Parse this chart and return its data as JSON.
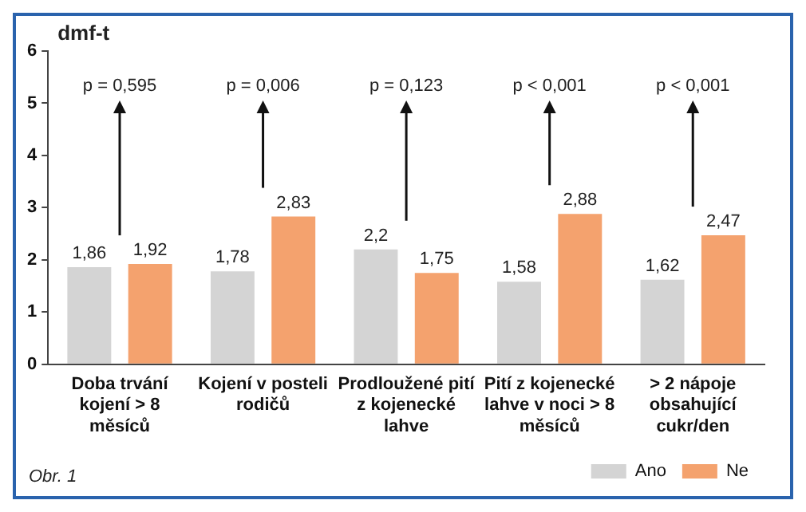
{
  "chart_data": {
    "type": "bar",
    "ylabel": "dmf-t",
    "categories": [
      "Doba trvání kojení > 8 měsíců",
      "Kojení v posteli rodičů",
      "Prodloužené pití z kojenecké lahve",
      "Pití z kojenecké lahve v noci > 8 měsíců",
      "> 2 nápoje obsahující cukr/den"
    ],
    "series": [
      {
        "name": "Ano",
        "color": "#d4d4d4",
        "values": [
          1.86,
          1.78,
          2.2,
          1.58,
          1.62
        ],
        "value_labels": [
          "1,86",
          "1,78",
          "2,2",
          "1,58",
          "1,62"
        ]
      },
      {
        "name": "Ne",
        "color": "#f4a26e",
        "values": [
          1.92,
          2.83,
          1.75,
          2.88,
          2.47
        ],
        "value_labels": [
          "1,92",
          "2,83",
          "1,75",
          "2,88",
          "2,47"
        ]
      }
    ],
    "ylim": [
      0,
      6
    ],
    "yticks": [
      0,
      1,
      2,
      3,
      4,
      5,
      6
    ],
    "legend": "bottom right",
    "annotations": [
      "p = 0,595",
      "p = 0,006",
      "p = 0,123",
      "p < 0,001",
      "p < 0,001",
      "Obr. 1"
    ]
  }
}
